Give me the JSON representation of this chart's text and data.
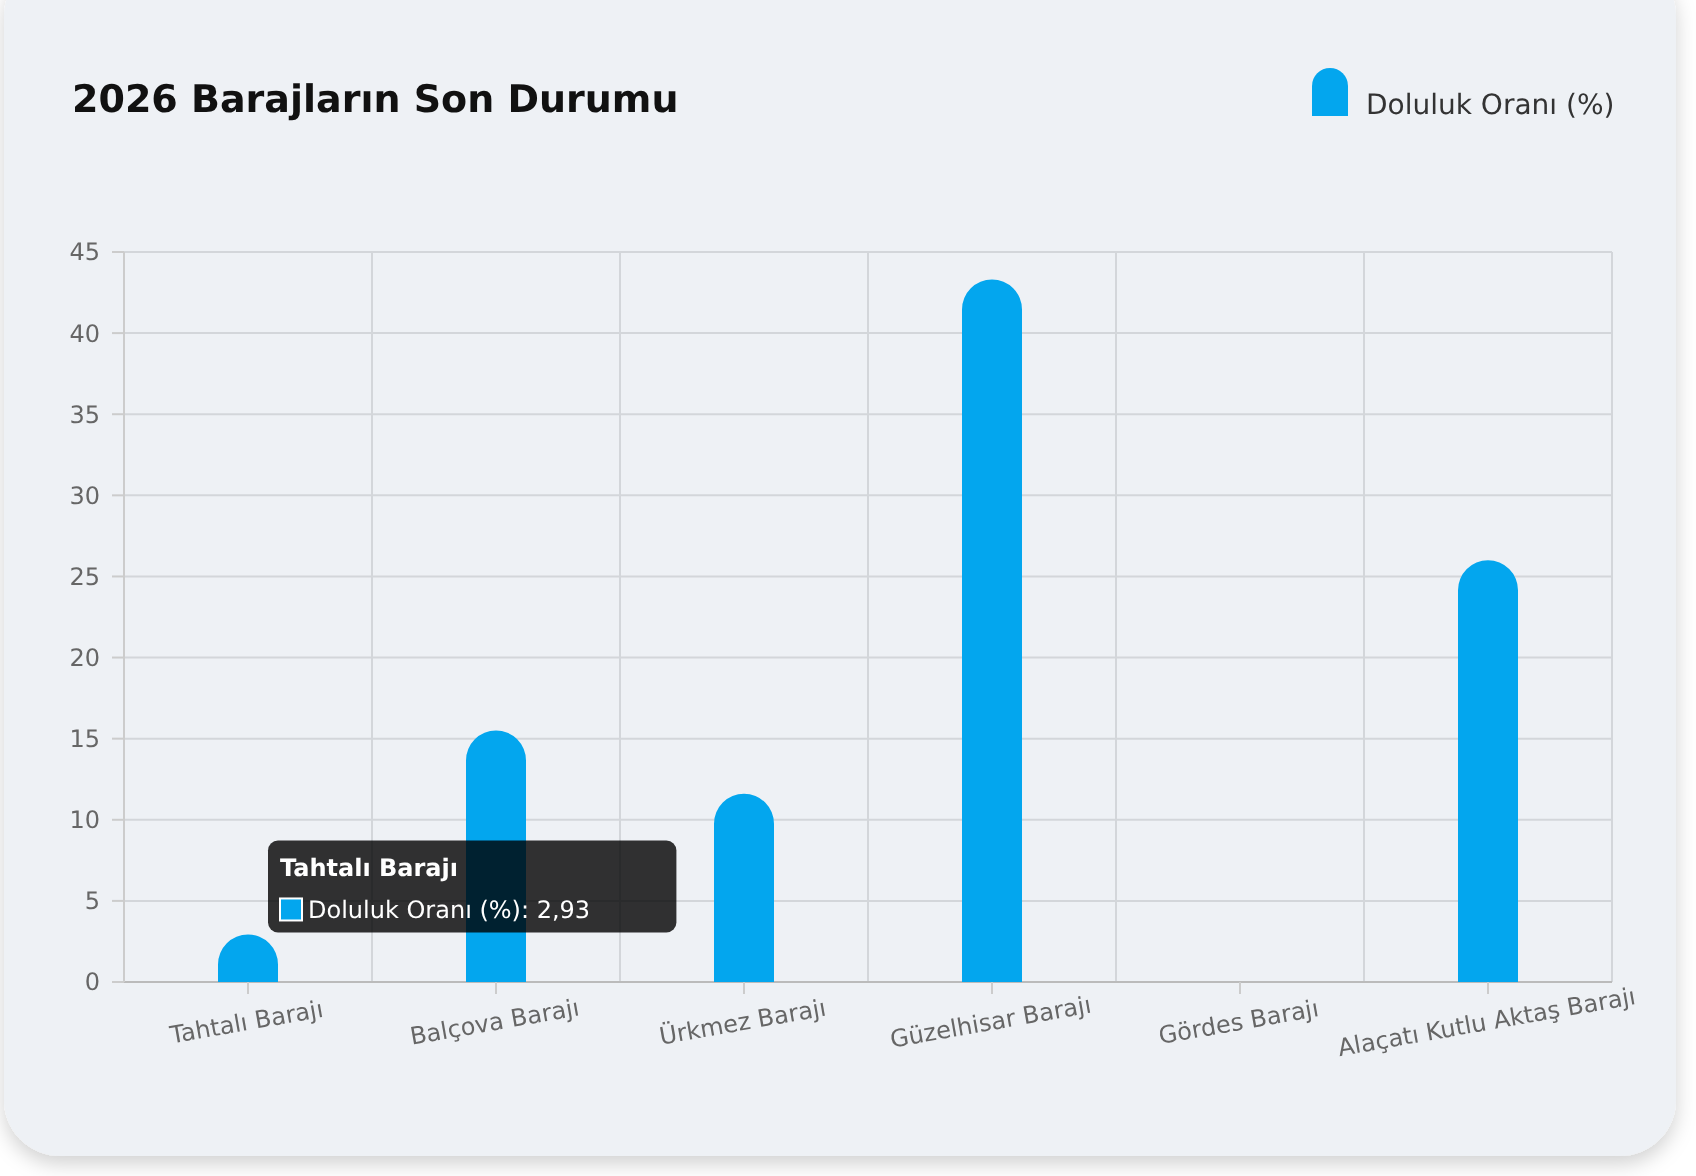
{
  "chart_data": {
    "type": "bar",
    "title": "2026 Barajların Son Durumu",
    "categories": [
      "Tahtalı Barajı",
      "Balçova Barajı",
      "Ürkmez Barajı",
      "Güzelhisar Barajı",
      "Gördes Barajı",
      "Alaçatı Kutlu Aktaş Barajı"
    ],
    "series": [
      {
        "name": "Doluluk Oranı (%)",
        "color": "#03a6ee",
        "values": [
          2.93,
          15.5,
          11.6,
          43.3,
          0,
          26
        ]
      }
    ],
    "ylim": [
      0,
      45
    ],
    "yticks": [
      0,
      5,
      10,
      15,
      20,
      25,
      30,
      35,
      40,
      45
    ],
    "grid": true,
    "legend": "top right",
    "annotations": [
      {
        "text": "Tahtalı Barajı\nDoluluk Oranı (%): 2,93",
        "x": "Tahtalı Barajı",
        "y": 2.93
      }
    ]
  }
}
